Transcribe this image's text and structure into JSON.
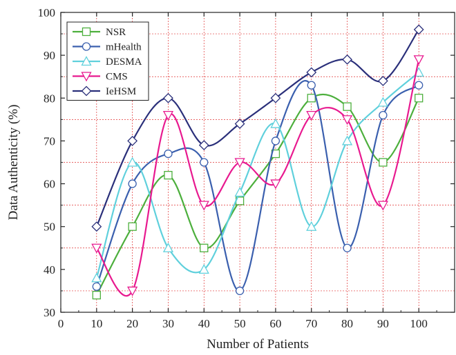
{
  "chart_data": {
    "type": "line",
    "xlabel": "Number of Patients",
    "ylabel": "Data Authenticity (%)",
    "xlim": [
      0,
      110
    ],
    "ylim": [
      30,
      100
    ],
    "xticks": [
      0,
      10,
      20,
      30,
      40,
      50,
      60,
      70,
      80,
      90,
      100
    ],
    "yticks": [
      30,
      40,
      50,
      60,
      70,
      80,
      90,
      100
    ],
    "x": [
      10,
      20,
      30,
      40,
      50,
      60,
      70,
      80,
      90,
      100
    ],
    "grid": "dashed red gridlines",
    "legend_position": "top-left",
    "series": [
      {
        "name": "NSR",
        "color": "#4caf3c",
        "marker": "square",
        "values": [
          34,
          50,
          62,
          45,
          56,
          67,
          80,
          78,
          65,
          80
        ]
      },
      {
        "name": "mHealth",
        "color": "#3a5fae",
        "marker": "circle",
        "values": [
          36,
          60,
          67,
          65,
          35,
          70,
          83,
          45,
          76,
          83
        ]
      },
      {
        "name": "DESMA",
        "color": "#5fd0dc",
        "marker": "triangle-up",
        "values": [
          38,
          65,
          45,
          40,
          58,
          74,
          50,
          70,
          79,
          86
        ]
      },
      {
        "name": "CMS",
        "color": "#e8198f",
        "marker": "triangle-down",
        "values": [
          45,
          35,
          76,
          55,
          65,
          60,
          76,
          75,
          55,
          89
        ]
      },
      {
        "name": "IeHSM",
        "color": "#2a2f7a",
        "marker": "diamond",
        "values": [
          50,
          70,
          80,
          69,
          74,
          80,
          86,
          89,
          84,
          96
        ]
      }
    ]
  }
}
